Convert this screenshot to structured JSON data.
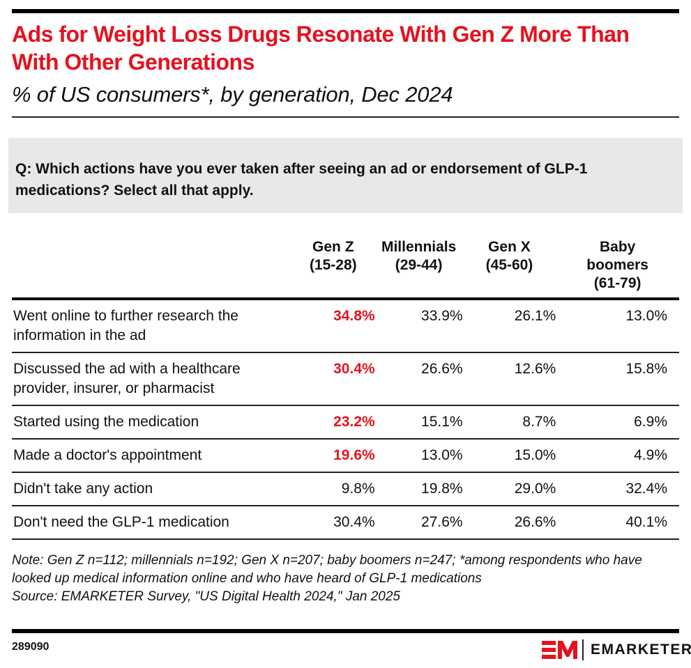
{
  "header": {
    "title": "Ads for Weight Loss Drugs Resonate With Gen Z More Than With Other Generations",
    "subtitle": "% of US consumers*, by generation, Dec 2024"
  },
  "question": "Q: Which actions have you ever taken after seeing an ad or endorsement of GLP-1 medications? Select all that apply.",
  "colors": {
    "accent": "#e5121f",
    "text": "#111111",
    "question_bg": "#e8e8e8"
  },
  "chart_data": {
    "type": "table",
    "title": "Ads for Weight Loss Drugs Resonate With Gen Z More Than With Other Generations",
    "subtitle": "% of US consumers*, by generation, Dec 2024",
    "columns": [
      {
        "line1": "Gen Z",
        "line2": "(15-28)",
        "line3": ""
      },
      {
        "line1": "Millennials",
        "line2": "(29-44)",
        "line3": ""
      },
      {
        "line1": "Gen X",
        "line2": "(45-60)",
        "line3": ""
      },
      {
        "line1": "Baby",
        "line2": "boomers",
        "line3": "(61-79)"
      }
    ],
    "rows": [
      {
        "label": "Went online to further research the information in the ad",
        "values": [
          "34.8%",
          "33.9%",
          "26.1%",
          "13.0%"
        ],
        "highlight": [
          true,
          false,
          false,
          false
        ]
      },
      {
        "label": "Discussed the ad with a healthcare provider, insurer, or pharmacist",
        "values": [
          "30.4%",
          "26.6%",
          "12.6%",
          "15.8%"
        ],
        "highlight": [
          true,
          false,
          false,
          false
        ]
      },
      {
        "label": "Started using the medication",
        "values": [
          "23.2%",
          "15.1%",
          "8.7%",
          "6.9%"
        ],
        "highlight": [
          true,
          false,
          false,
          false
        ]
      },
      {
        "label": "Made a doctor's appointment",
        "values": [
          "19.6%",
          "13.0%",
          "15.0%",
          "4.9%"
        ],
        "highlight": [
          true,
          false,
          false,
          false
        ]
      },
      {
        "label": "Didn't take any action",
        "values": [
          "9.8%",
          "19.8%",
          "29.0%",
          "32.4%"
        ],
        "highlight": [
          false,
          false,
          false,
          false
        ]
      },
      {
        "label": "Don't need the GLP-1 medication",
        "values": [
          "30.4%",
          "27.6%",
          "26.6%",
          "40.1%"
        ],
        "highlight": [
          false,
          false,
          false,
          false
        ]
      }
    ]
  },
  "footer": {
    "note": "Note: Gen Z n=112; millennials n=192; Gen X n=207; baby boomers n=247; *among respondents who have looked up medical information online and who have heard of GLP-1 medications",
    "source": "Source: EMARKETER Survey, \"US Digital Health 2024,\" Jan 2025",
    "chart_id": "289090",
    "brand": "EMARKETER",
    "logo_icon": "em-logo-icon"
  }
}
